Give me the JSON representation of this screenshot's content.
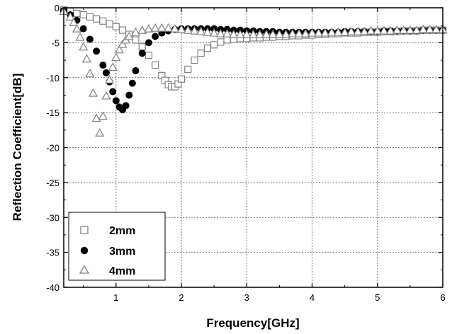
{
  "chart_data": {
    "type": "scatter",
    "title": "",
    "xlabel": "Frequency[GHz]",
    "ylabel": "Reflection Coefficient[dB]",
    "xlim": [
      0.2,
      6
    ],
    "ylim": [
      -40,
      0
    ],
    "grid": true,
    "legend_position": "bottom-left",
    "x_ticks": [
      1,
      2,
      3,
      4,
      5,
      6
    ],
    "x_tick_labels": [
      "1",
      "2",
      "3",
      "4",
      "5",
      "6"
    ],
    "y_ticks": [
      0,
      -5,
      -10,
      -15,
      -20,
      -25,
      -30,
      -35,
      -40
    ],
    "y_tick_labels": [
      "0",
      "-5",
      "-10",
      "-15",
      "-20",
      "-25",
      "-30",
      "-35",
      "-40"
    ],
    "series": [
      {
        "name": "2mm",
        "marker": "open-square",
        "color": "#808080",
        "x": [
          0.2,
          0.3,
          0.4,
          0.5,
          0.6,
          0.7,
          0.8,
          0.9,
          1.0,
          1.1,
          1.2,
          1.3,
          1.4,
          1.5,
          1.6,
          1.7,
          1.75,
          1.8,
          1.85,
          1.9,
          1.95,
          2.0,
          2.1,
          2.2,
          2.3,
          2.4,
          2.5,
          2.6,
          2.7,
          2.8,
          2.9,
          3.0,
          3.1,
          3.2,
          3.3,
          3.4,
          3.5,
          3.6,
          3.7,
          3.8,
          3.9,
          4.0,
          4.1,
          4.2,
          4.3,
          4.4,
          4.5,
          4.6,
          4.7,
          4.8,
          4.9,
          5.0,
          5.1,
          5.2,
          5.3,
          5.4,
          5.5,
          5.6,
          5.7,
          5.8,
          5.9,
          6.0
        ],
        "y": [
          -0.3,
          -0.5,
          -0.8,
          -1.0,
          -1.3,
          -1.6,
          -1.9,
          -2.3,
          -2.7,
          -3.2,
          -3.8,
          -4.6,
          -5.6,
          -6.8,
          -8.2,
          -9.7,
          -10.4,
          -11.0,
          -11.3,
          -11.3,
          -10.9,
          -10.2,
          -8.8,
          -7.5,
          -6.5,
          -5.8,
          -5.3,
          -4.9,
          -4.6,
          -4.5,
          -4.4,
          -4.4,
          -4.3,
          -4.3,
          -4.2,
          -4.2,
          -4.1,
          -4.1,
          -4.0,
          -4.0,
          -3.9,
          -3.9,
          -3.8,
          -3.8,
          -3.7,
          -3.7,
          -3.6,
          -3.6,
          -3.6,
          -3.5,
          -3.5,
          -3.5,
          -3.4,
          -3.4,
          -3.4,
          -3.3,
          -3.3,
          -3.3,
          -3.2,
          -3.2,
          -3.2,
          -3.2
        ]
      },
      {
        "name": "3mm",
        "marker": "filled-circle",
        "color": "#000000",
        "x": [
          0.2,
          0.3,
          0.4,
          0.5,
          0.6,
          0.7,
          0.8,
          0.85,
          0.9,
          0.95,
          1.0,
          1.05,
          1.1,
          1.15,
          1.2,
          1.25,
          1.3,
          1.4,
          1.5,
          1.6,
          1.7,
          1.8,
          1.9,
          2.0,
          2.1,
          2.2,
          2.3,
          2.4,
          2.5,
          2.6,
          2.7,
          2.8,
          2.9,
          3.0,
          3.1,
          3.2,
          3.3,
          3.4,
          3.5,
          3.6,
          3.7,
          3.8,
          3.9,
          4.0,
          4.1,
          4.2,
          4.3,
          4.4,
          4.5,
          4.6,
          4.7,
          4.8,
          4.9,
          5.0,
          5.1,
          5.2,
          5.3,
          5.4,
          5.5,
          5.6,
          5.7,
          5.8,
          5.9,
          6.0
        ],
        "y": [
          -0.4,
          -1.0,
          -1.8,
          -3.0,
          -4.5,
          -6.2,
          -8.2,
          -9.3,
          -10.6,
          -12.0,
          -13.3,
          -14.2,
          -14.6,
          -14.0,
          -12.5,
          -10.8,
          -9.0,
          -6.5,
          -5.0,
          -4.1,
          -3.6,
          -3.3,
          -3.1,
          -3.0,
          -3.0,
          -3.0,
          -3.0,
          -3.0,
          -3.0,
          -3.1,
          -3.1,
          -3.2,
          -3.2,
          -3.3,
          -3.3,
          -3.4,
          -3.4,
          -3.4,
          -3.5,
          -3.5,
          -3.5,
          -3.5,
          -3.5,
          -3.5,
          -3.5,
          -3.5,
          -3.5,
          -3.5,
          -3.4,
          -3.4,
          -3.4,
          -3.4,
          -3.4,
          -3.4,
          -3.3,
          -3.3,
          -3.3,
          -3.3,
          -3.3,
          -3.3,
          -3.2,
          -3.2,
          -3.2,
          -3.2
        ]
      },
      {
        "name": "4mm",
        "marker": "open-triangle",
        "color": "#808080",
        "x": [
          0.2,
          0.3,
          0.35,
          0.4,
          0.45,
          0.5,
          0.55,
          0.6,
          0.65,
          0.7,
          0.75,
          0.8,
          0.85,
          0.9,
          0.95,
          1.0,
          1.05,
          1.1,
          1.15,
          1.2,
          1.3,
          1.4,
          1.5,
          1.6,
          1.7,
          1.8,
          1.9,
          2.0,
          2.1,
          2.2,
          2.3,
          2.4,
          2.5,
          2.6,
          2.7,
          2.8,
          2.9,
          3.0,
          3.1,
          3.2,
          3.3,
          3.4,
          3.5,
          3.6,
          3.7,
          3.8,
          3.9,
          4.0,
          4.1,
          4.2,
          4.3,
          4.4,
          4.5,
          4.6,
          4.7,
          4.8,
          4.9,
          5.0,
          5.1,
          5.2,
          5.3,
          5.4,
          5.5,
          5.6,
          5.7,
          5.8,
          5.9,
          6.0
        ],
        "y": [
          -0.5,
          -1.3,
          -2.1,
          -3.0,
          -4.2,
          -5.6,
          -7.3,
          -9.4,
          -12.2,
          -15.8,
          -17.9,
          -15.5,
          -12.6,
          -10.3,
          -8.5,
          -7.1,
          -6.0,
          -5.2,
          -4.6,
          -4.1,
          -3.5,
          -3.2,
          -3.0,
          -2.9,
          -2.9,
          -2.9,
          -3.0,
          -3.1,
          -3.2,
          -3.3,
          -3.4,
          -3.5,
          -3.6,
          -3.7,
          -3.7,
          -3.8,
          -3.8,
          -3.8,
          -3.8,
          -3.8,
          -3.8,
          -3.8,
          -3.8,
          -3.8,
          -3.7,
          -3.7,
          -3.7,
          -3.6,
          -3.6,
          -3.6,
          -3.5,
          -3.5,
          -3.5,
          -3.4,
          -3.4,
          -3.4,
          -3.3,
          -3.3,
          -3.3,
          -3.3,
          -3.2,
          -3.2,
          -3.2,
          -3.2,
          -3.1,
          -3.1,
          -3.1,
          -3.1
        ]
      }
    ]
  }
}
